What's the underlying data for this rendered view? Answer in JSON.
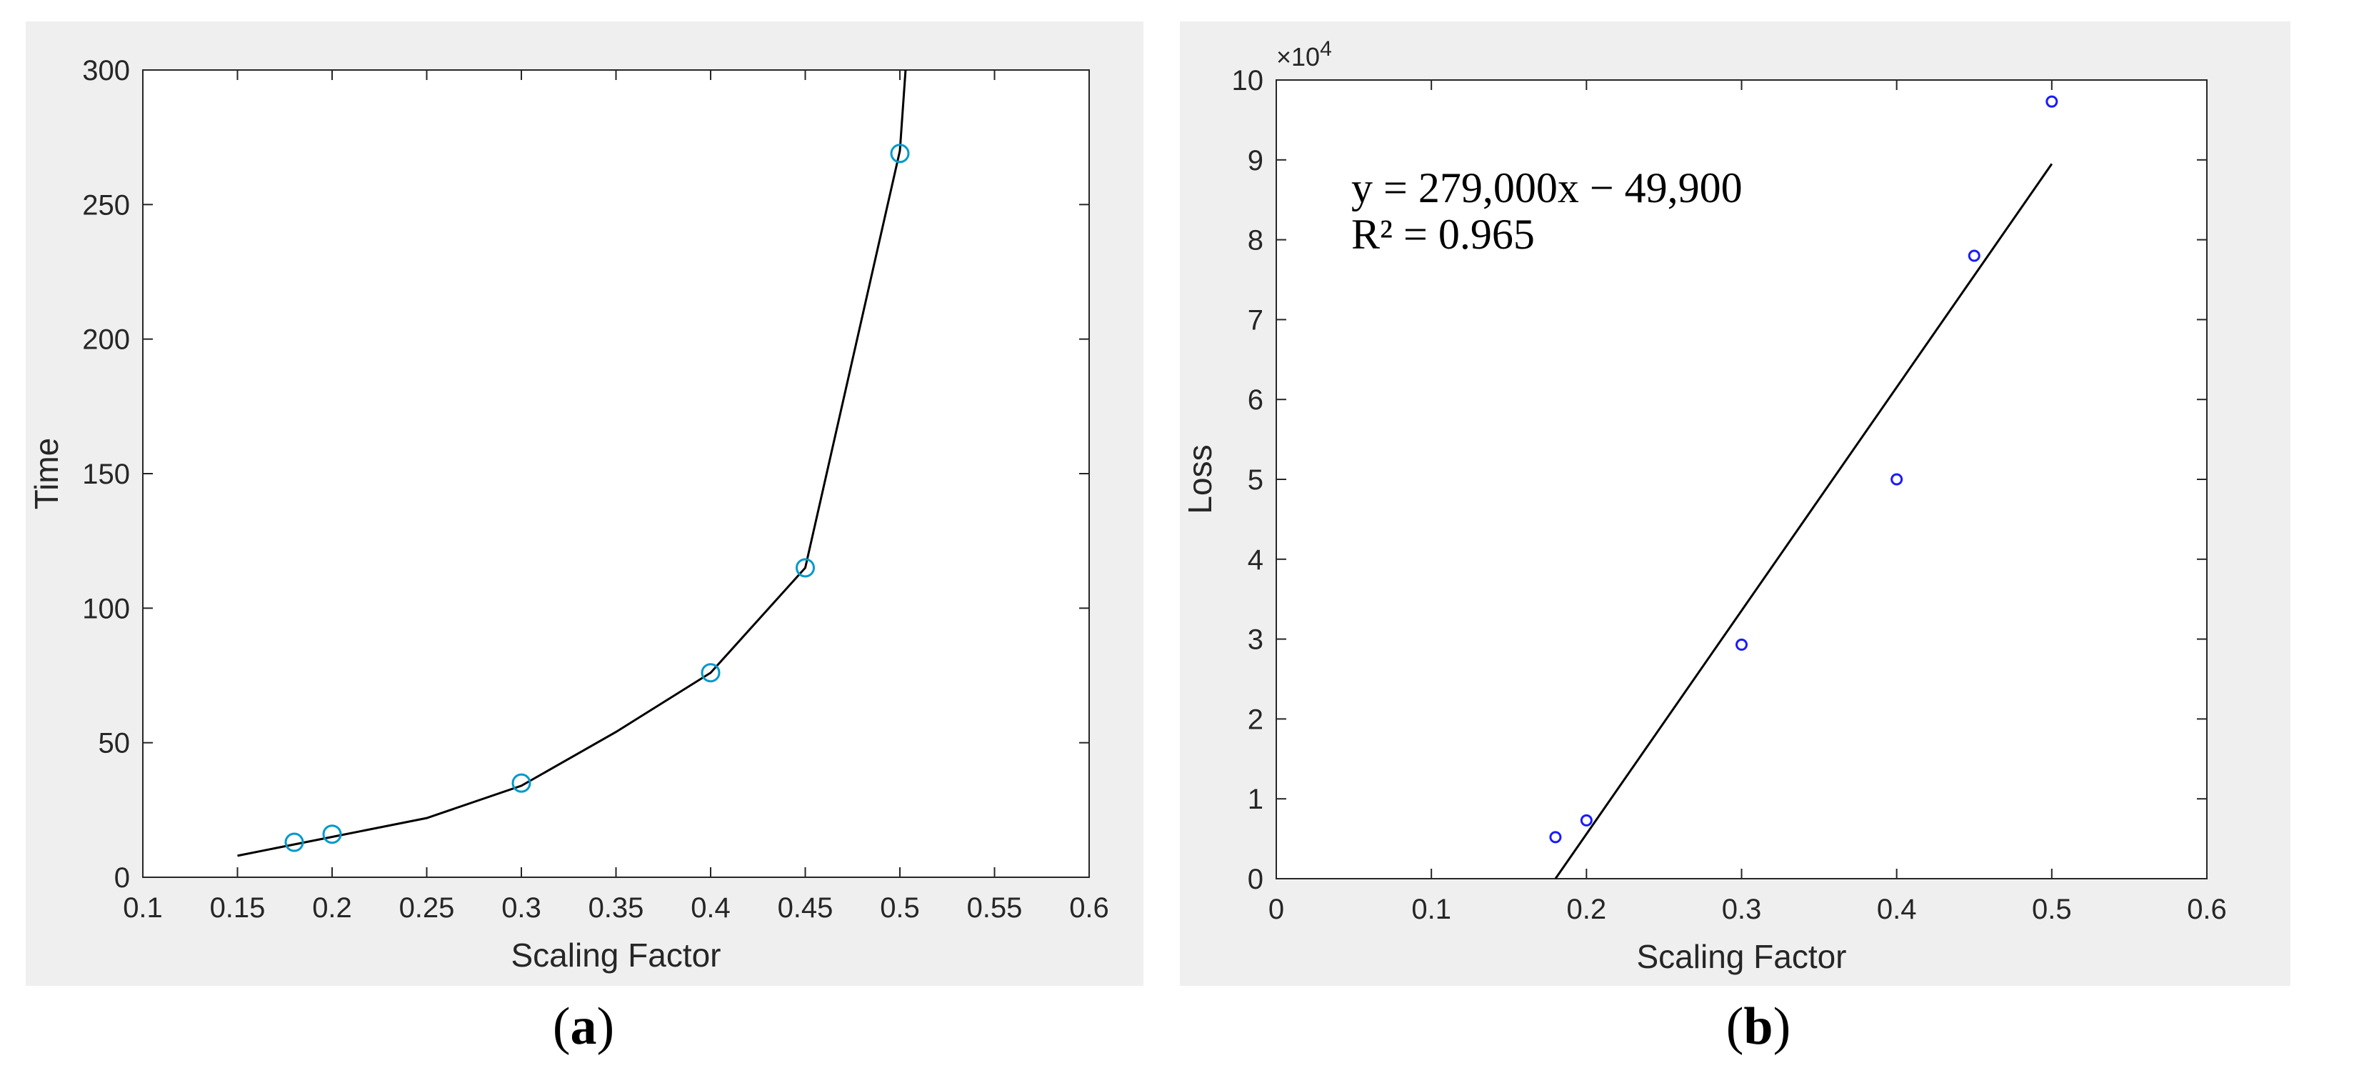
{
  "chart_data": [
    {
      "id": "a",
      "type": "line",
      "caption_label": "a",
      "xlabel": "Scaling Factor",
      "ylabel": "Time",
      "xlim": [
        0.1,
        0.6
      ],
      "ylim": [
        0,
        300
      ],
      "xticks": [
        "0.1",
        "0.15",
        "0.2",
        "0.25",
        "0.3",
        "0.35",
        "0.4",
        "0.45",
        "0.5",
        "0.55",
        "0.6"
      ],
      "yticks": [
        "0",
        "50",
        "100",
        "150",
        "200",
        "250",
        "300"
      ],
      "series": [
        {
          "kind": "line",
          "color": "#000000",
          "x": [
            0.15,
            0.2,
            0.25,
            0.3,
            0.35,
            0.4,
            0.45,
            0.5,
            0.503
          ],
          "y": [
            8,
            15,
            22,
            34,
            54,
            76,
            115,
            270,
            300
          ]
        },
        {
          "kind": "markers",
          "color": "#0099cc",
          "marker": "circle",
          "x": [
            0.18,
            0.2,
            0.3,
            0.4,
            0.45,
            0.5
          ],
          "y": [
            13,
            16,
            35,
            76,
            115,
            269
          ]
        }
      ]
    },
    {
      "id": "b",
      "type": "scatter",
      "caption_label": "b",
      "xlabel": "Scaling Factor",
      "ylabel": "Loss",
      "exponent_label": "×10",
      "exponent_power": "4",
      "xlim": [
        0,
        0.6
      ],
      "ylim": [
        0,
        10
      ],
      "xticks": [
        "0",
        "0.1",
        "0.2",
        "0.3",
        "0.4",
        "0.5",
        "0.6"
      ],
      "yticks": [
        "0",
        "1",
        "2",
        "3",
        "4",
        "5",
        "6",
        "7",
        "8",
        "9",
        "10"
      ],
      "equation_line1": "y = 279,000x − 49,900",
      "equation_line2": "R² = 0.965",
      "series": [
        {
          "kind": "markers",
          "color": "#1a1aff",
          "marker": "circle",
          "x": [
            0.18,
            0.2,
            0.3,
            0.4,
            0.45,
            0.5
          ],
          "y": [
            0.52,
            0.73,
            2.93,
            5.0,
            7.8,
            9.73
          ]
        },
        {
          "kind": "fit-line",
          "color": "#000000",
          "x": [
            0.18,
            0.5
          ],
          "y": [
            0.0,
            8.95
          ]
        }
      ]
    }
  ]
}
